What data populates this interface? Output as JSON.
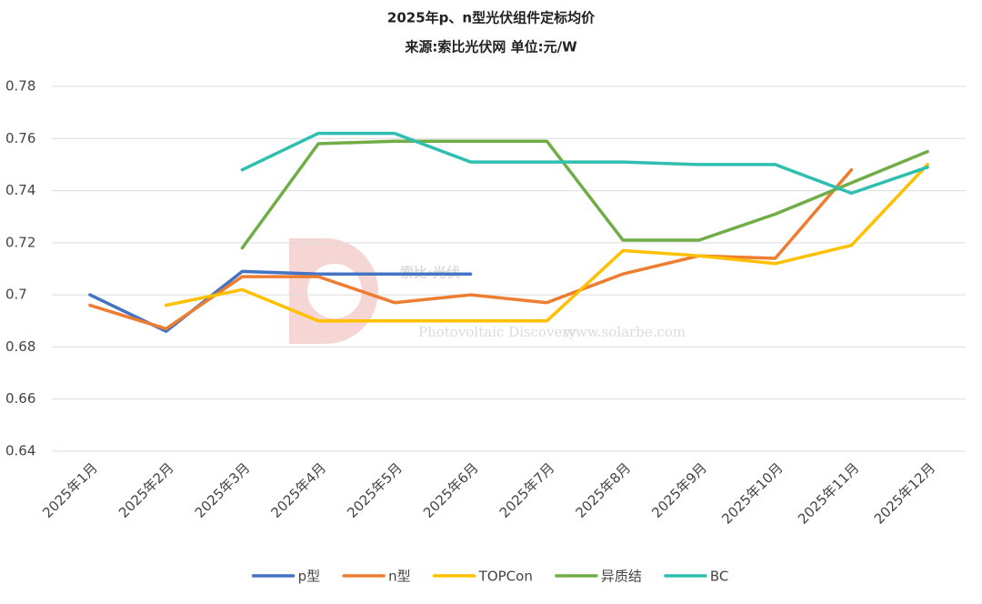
{
  "chart_data": {
    "type": "line",
    "title": "2025年p、n型光伏组件定标均价",
    "subtitle": "来源:索比光伏网 单位:元/W",
    "watermark": [
      "索比·光伏",
      "Photovoltaic Discovery",
      "www.solarbe.com"
    ],
    "categories": [
      "2025年1月",
      "2025年2月",
      "2025年3月",
      "2025年4月",
      "2025年5月",
      "2025年6月",
      "2025年7月",
      "2025年8月",
      "2025年9月",
      "2025年10月",
      "2025年11月",
      "2025年12月"
    ],
    "series": [
      {
        "name": "p型",
        "color": "#4472c4",
        "values": [
          0.7,
          0.686,
          0.709,
          0.708,
          0.708,
          0.708,
          null,
          null,
          null,
          null,
          null,
          null
        ]
      },
      {
        "name": "n型",
        "color": "#ed7d31",
        "values": [
          0.696,
          0.687,
          0.707,
          0.707,
          0.697,
          0.7,
          0.697,
          0.708,
          0.715,
          0.714,
          0.748,
          null
        ]
      },
      {
        "name": "TOPCon",
        "color": "#ffc000",
        "values": [
          null,
          0.696,
          0.702,
          0.69,
          0.69,
          0.69,
          0.69,
          0.717,
          0.715,
          0.712,
          0.719,
          0.75
        ]
      },
      {
        "name": "异质结",
        "color": "#70ad47",
        "values": [
          null,
          null,
          0.718,
          0.758,
          0.759,
          0.759,
          0.759,
          0.721,
          0.721,
          0.731,
          0.743,
          0.755
        ]
      },
      {
        "name": "BC",
        "color": "#2ebfb1",
        "values": [
          null,
          null,
          0.748,
          0.762,
          0.762,
          0.751,
          0.751,
          0.751,
          0.75,
          0.75,
          0.739,
          0.749
        ]
      }
    ],
    "ylim": [
      0.64,
      0.78
    ],
    "yticks": [
      0.64,
      0.66,
      0.68,
      0.7,
      0.72,
      0.74,
      0.76,
      0.78
    ],
    "grid": true,
    "legend": "bottom"
  }
}
